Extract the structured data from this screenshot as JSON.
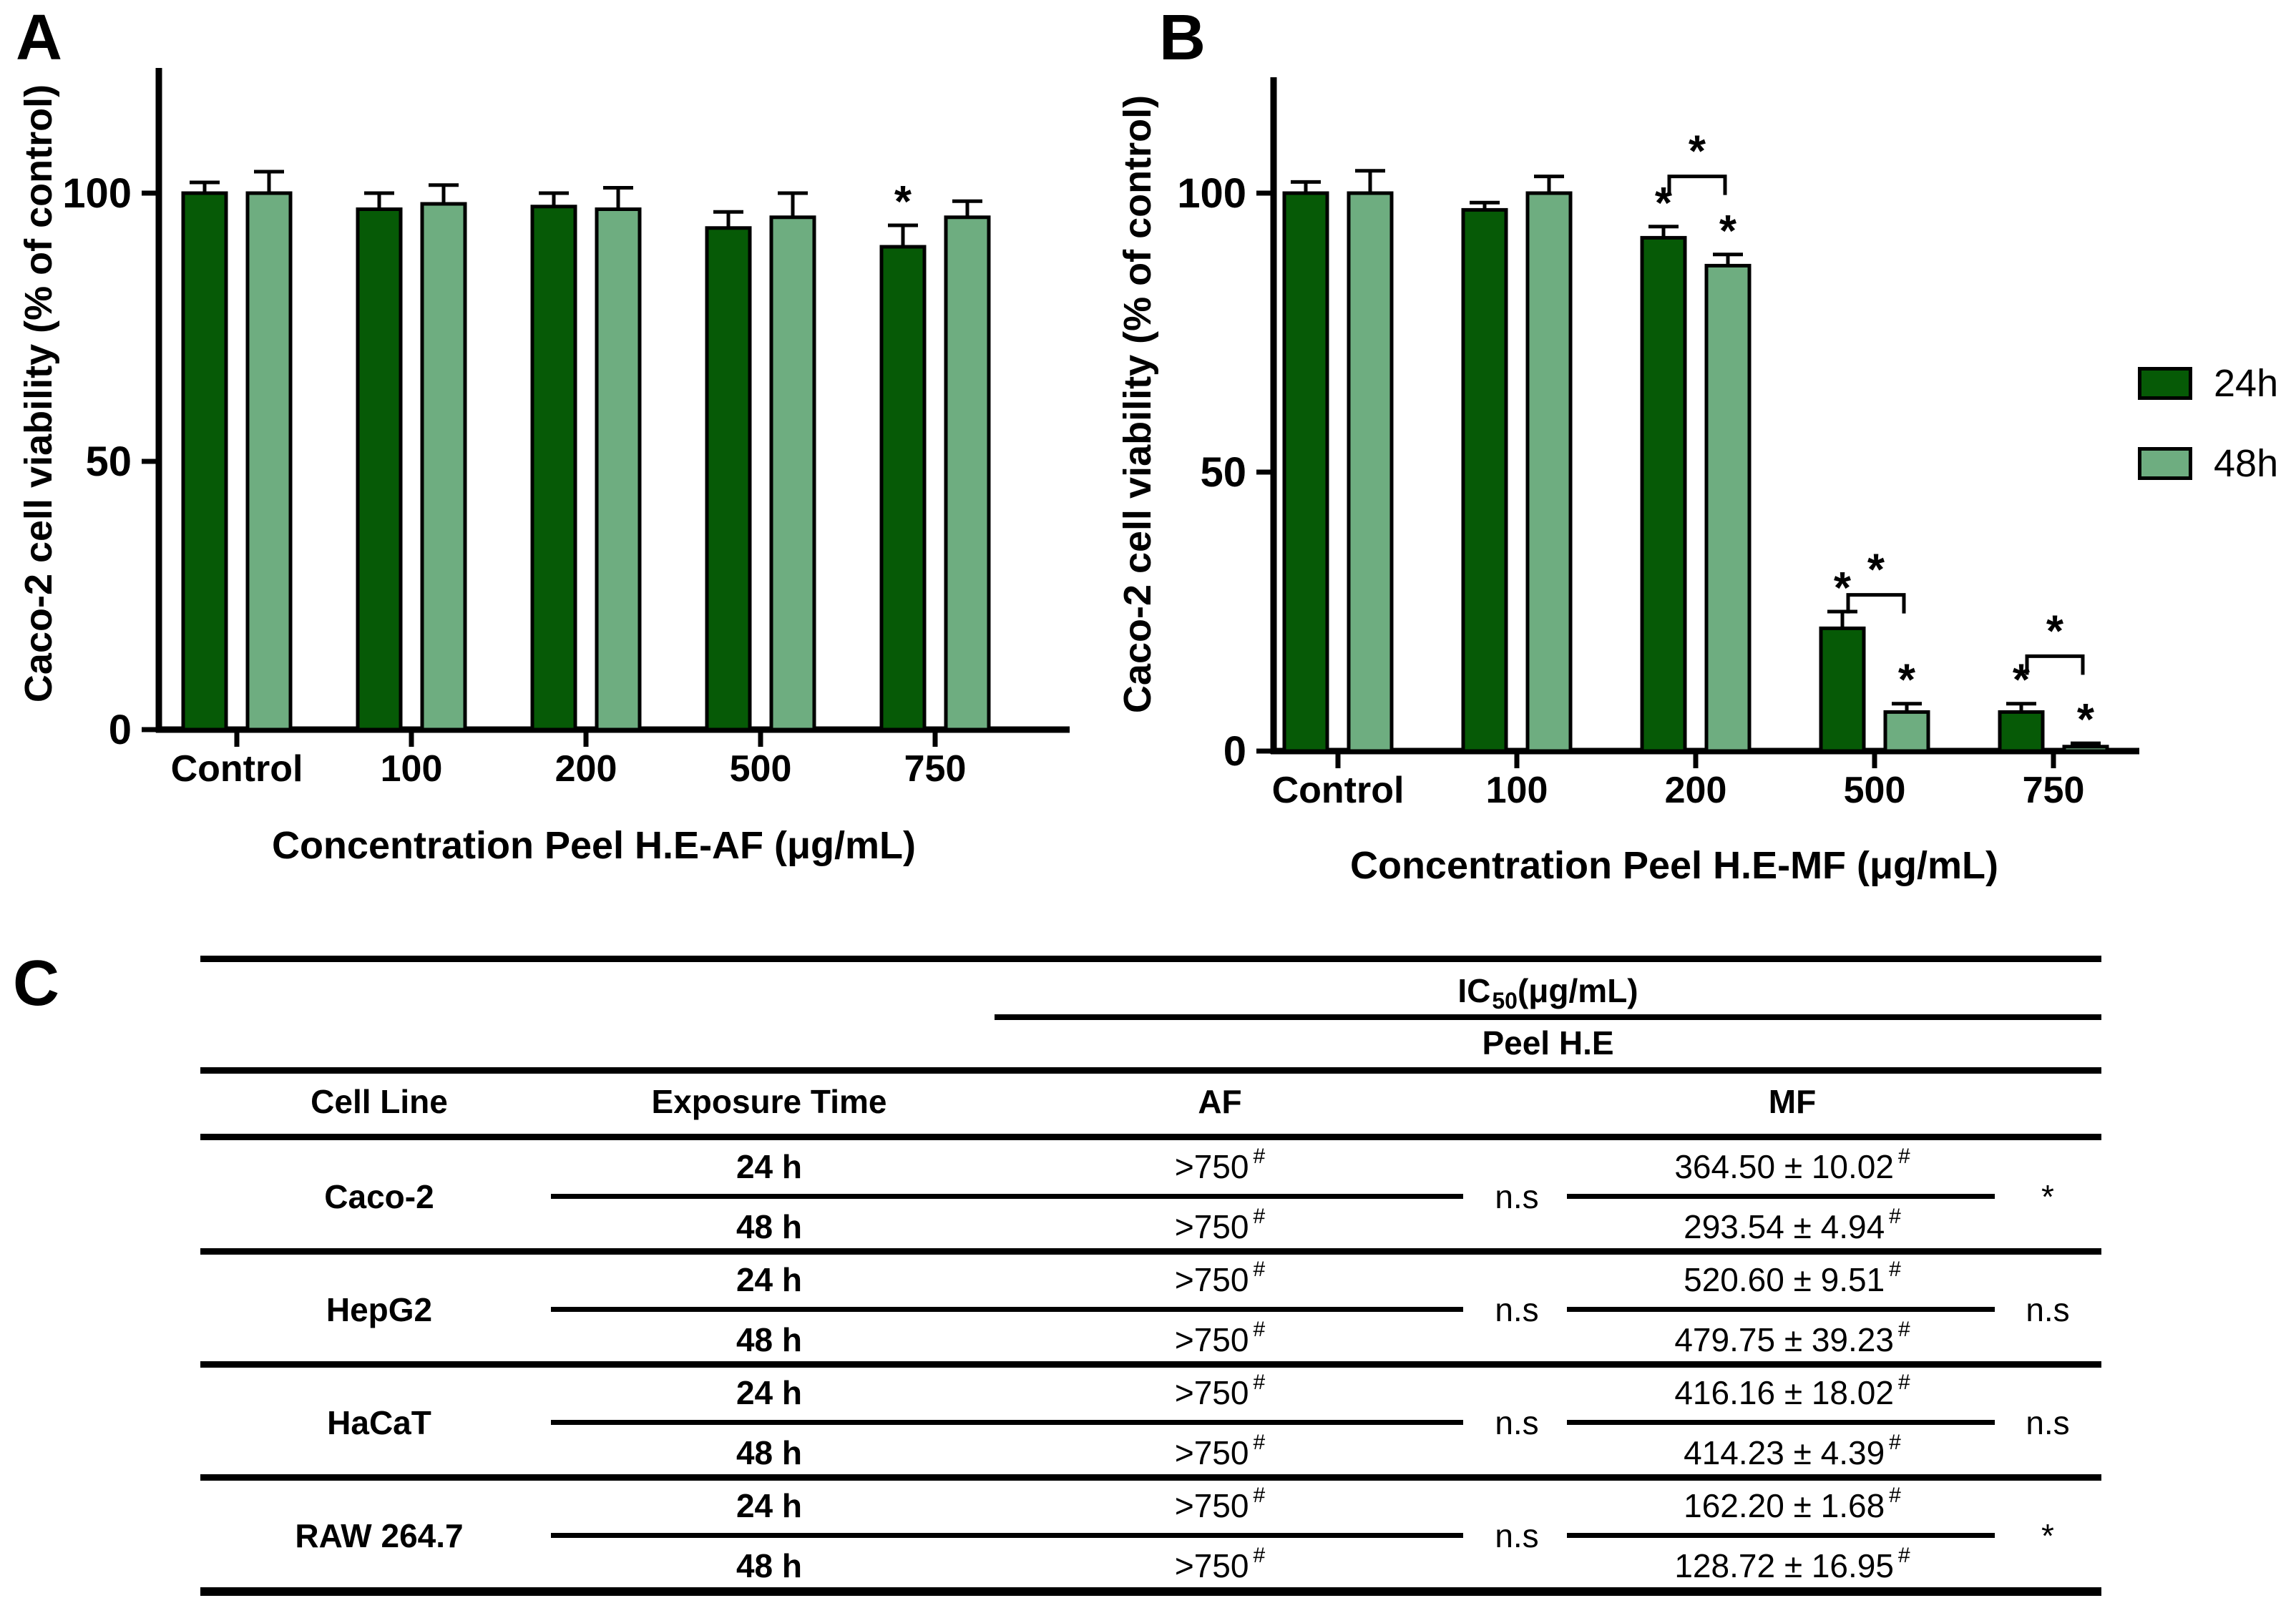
{
  "panels": {
    "a": {
      "label": "A"
    },
    "b": {
      "label": "B"
    },
    "c": {
      "label": "C"
    }
  },
  "legend": {
    "items": [
      {
        "label": "24h",
        "color": "#065A06"
      },
      {
        "label": "48h",
        "color": "#6EAD80"
      }
    ]
  },
  "colors": {
    "bar_24h": "#065A06",
    "bar_48h": "#6EAD80",
    "outline": "#000000"
  },
  "chart_data": [
    {
      "type": "bar",
      "panel": "A",
      "title": "",
      "categories": [
        "Control",
        "100",
        "200",
        "500",
        "750"
      ],
      "series": [
        {
          "name": "24h",
          "color": "#065A06",
          "values": [
            100,
            97,
            97.5,
            93.5,
            90
          ],
          "errors": [
            2,
            3,
            2.5,
            3,
            4
          ],
          "stars": [
            false,
            false,
            false,
            false,
            true
          ]
        },
        {
          "name": "48h",
          "color": "#6EAD80",
          "values": [
            100,
            98,
            97,
            95.5,
            95.5
          ],
          "errors": [
            4,
            3.5,
            4,
            4.5,
            3
          ],
          "stars": [
            false,
            false,
            false,
            false,
            false
          ]
        }
      ],
      "brackets": [],
      "xlabel": "Concentration Peel H.E-AF (μg/mL)",
      "ylabel": "Caco-2 cell viability (% of control)",
      "yticks": [
        0,
        50,
        100
      ],
      "ylim": [
        0,
        123
      ],
      "grid": false,
      "legend_position": "right-of-panel-B"
    },
    {
      "type": "bar",
      "panel": "B",
      "title": "",
      "categories": [
        "Control",
        "100",
        "200",
        "500",
        "750"
      ],
      "series": [
        {
          "name": "24h",
          "color": "#065A06",
          "values": [
            100,
            97,
            92,
            22,
            7
          ],
          "errors": [
            2,
            1.3,
            2,
            3,
            1.5
          ],
          "stars": [
            false,
            false,
            true,
            true,
            true
          ]
        },
        {
          "name": "48h",
          "color": "#6EAD80",
          "values": [
            100,
            100,
            87,
            7,
            0.8
          ],
          "errors": [
            4,
            3,
            2,
            1.5,
            0.6
          ],
          "stars": [
            false,
            false,
            true,
            true,
            true
          ]
        }
      ],
      "brackets": [
        {
          "group": 2,
          "y": 103,
          "label": "*"
        },
        {
          "group": 3,
          "y": 28,
          "label": "*"
        },
        {
          "group": 4,
          "y": 17,
          "label": "*"
        }
      ],
      "xlabel": "Concentration Peel H.E-MF (μg/mL)",
      "ylabel": "Caco-2 cell viability (% of control)",
      "yticks": [
        0,
        50,
        100
      ],
      "ylim": [
        0,
        120
      ],
      "grid": false,
      "legend_position": "right"
    }
  ],
  "table": {
    "title": {
      "prefix": "IC",
      "sub": "50",
      "suffix": " (μg/mL)"
    },
    "subtitle": "Peel H.E",
    "headers": [
      "Cell Line",
      "Exposure Time",
      "AF",
      "MF"
    ],
    "blocks": [
      {
        "cell_line": "Caco-2",
        "rows": [
          {
            "time": "24 h",
            "af": ">750",
            "af_sup": "#",
            "mf": "364.50 ± 10.02",
            "mf_sup": "#"
          },
          {
            "time": "48 h",
            "af": ">750",
            "af_sup": "#",
            "mf": "293.54 ± 4.94",
            "mf_sup": "#"
          }
        ],
        "af_sig": "n.s",
        "mf_sig": "*"
      },
      {
        "cell_line": "HepG2",
        "rows": [
          {
            "time": "24 h",
            "af": ">750",
            "af_sup": "#",
            "mf": "520.60 ± 9.51",
            "mf_sup": "#"
          },
          {
            "time": "48 h",
            "af": ">750",
            "af_sup": "#",
            "mf": "479.75 ± 39.23",
            "mf_sup": "#"
          }
        ],
        "af_sig": "n.s",
        "mf_sig": "n.s"
      },
      {
        "cell_line": "HaCaT",
        "rows": [
          {
            "time": "24 h",
            "af": ">750",
            "af_sup": "#",
            "mf": "416.16 ± 18.02",
            "mf_sup": "#"
          },
          {
            "time": "48 h",
            "af": ">750",
            "af_sup": "#",
            "mf": "414.23 ± 4.39",
            "mf_sup": "#"
          }
        ],
        "af_sig": "n.s",
        "mf_sig": "n.s"
      },
      {
        "cell_line": "RAW 264.7",
        "rows": [
          {
            "time": "24 h",
            "af": ">750",
            "af_sup": "#",
            "mf": "162.20 ± 1.68",
            "mf_sup": "#"
          },
          {
            "time": "48 h",
            "af": ">750",
            "af_sup": "#",
            "mf": "128.72 ± 16.95",
            "mf_sup": "#"
          }
        ],
        "af_sig": "n.s",
        "mf_sig": "*"
      }
    ]
  }
}
